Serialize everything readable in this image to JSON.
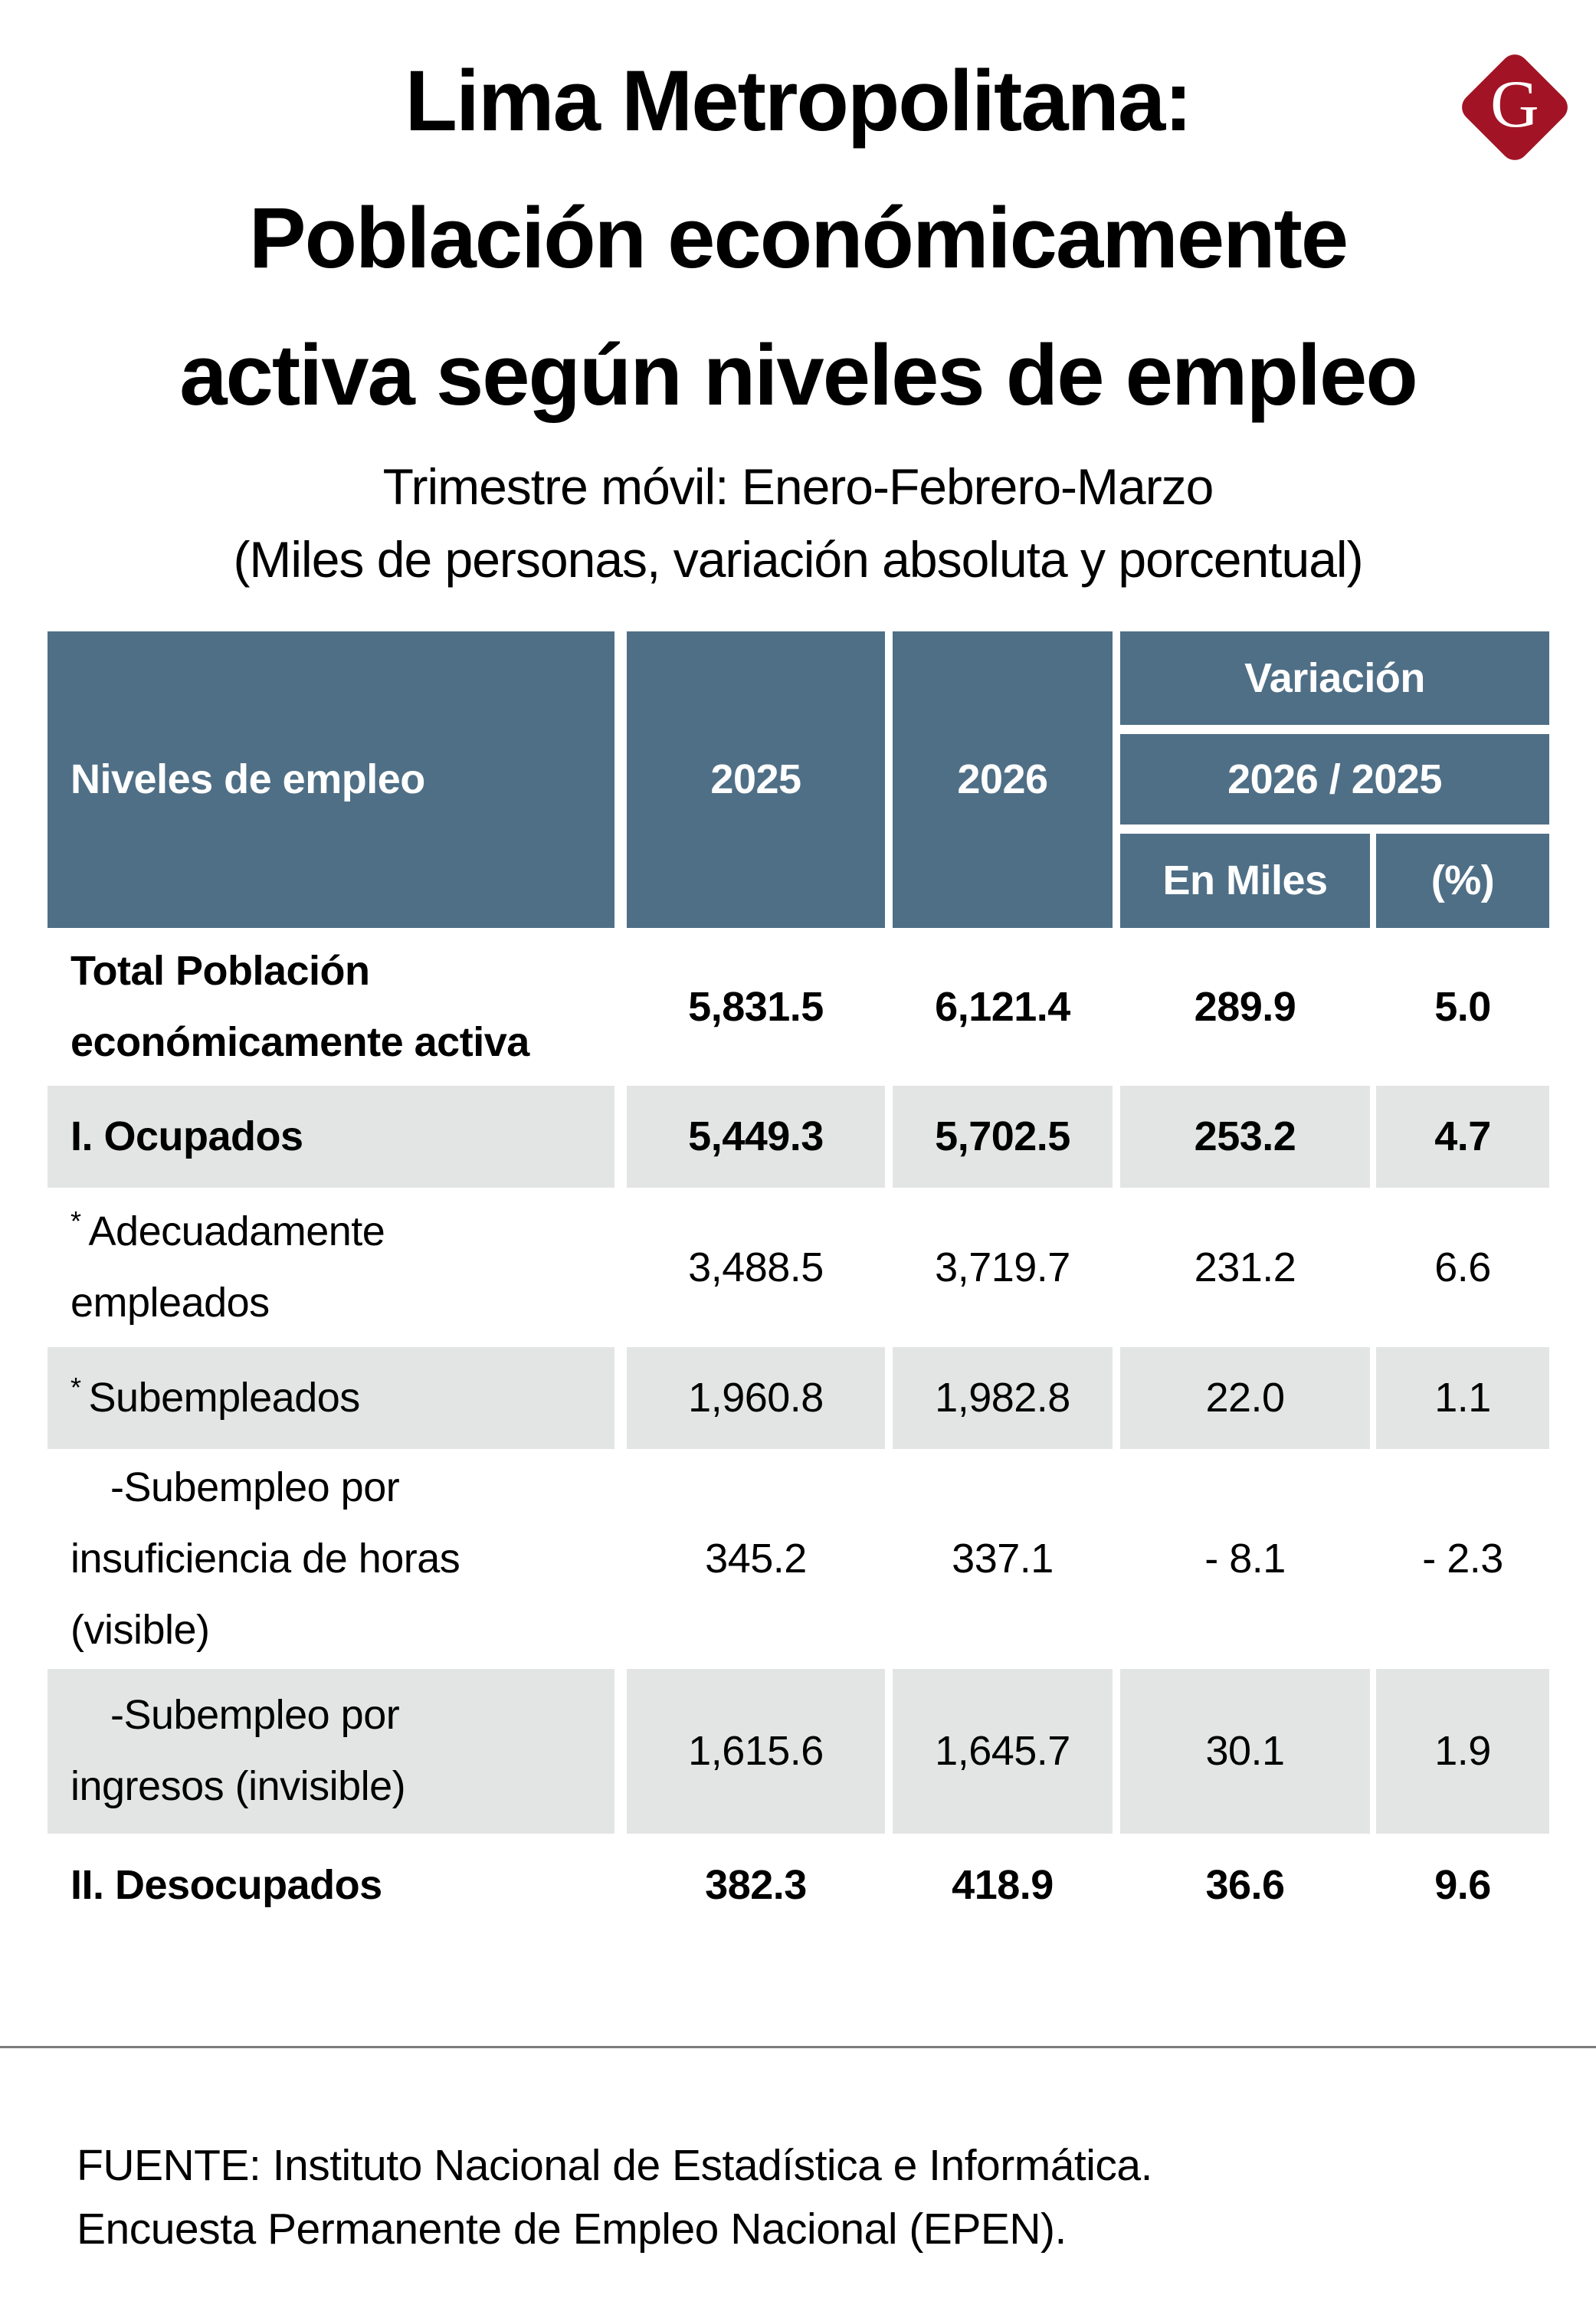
{
  "brand": {
    "logo_letter": "G"
  },
  "title": {
    "line1": "Lima Metropolitana:",
    "line2": "Población económicamente",
    "line3": "activa según niveles de empleo"
  },
  "subtitle": {
    "line1": "Trimestre móvil: Enero-Febrero-Marzo",
    "line2": "(Miles de personas, variación absoluta y porcentual)"
  },
  "table": {
    "header": {
      "col_levels": "Niveles de empleo",
      "col_2025": "2025",
      "col_2026": "2026",
      "variacion": "Variación",
      "ratio": "2026 / 2025",
      "en_miles": "En Miles",
      "pct": "(%)"
    },
    "rows": [
      {
        "prefix": "",
        "label": "Total Población\neconómicamente activa",
        "y2025": "5,831.5",
        "y2026": "6,121.4",
        "var_miles": "289.9",
        "var_pct": "5.0"
      },
      {
        "prefix": "",
        "label": "I. Ocupados",
        "y2025": "5,449.3",
        "y2026": "5,702.5",
        "var_miles": "253.2",
        "var_pct": "4.7"
      },
      {
        "prefix": "*",
        "label": "Adecuadamente\nempleados",
        "y2025": "3,488.5",
        "y2026": "3,719.7",
        "var_miles": "231.2",
        "var_pct": "6.6"
      },
      {
        "prefix": "*",
        "label": "Subempleados",
        "y2025": "1,960.8",
        "y2026": "1,982.8",
        "var_miles": "22.0",
        "var_pct": "1.1"
      },
      {
        "prefix": "",
        "label": "-Subempleo por\ninsuficiencia de horas\n(visible)",
        "y2025": "345.2",
        "y2026": "337.1",
        "var_miles": "- 8.1",
        "var_pct": "- 2.3"
      },
      {
        "prefix": "",
        "label": "-Subempleo por\ningresos (invisible)",
        "y2025": "1,615.6",
        "y2026": "1,645.7",
        "var_miles": "30.1",
        "var_pct": "1.9"
      },
      {
        "prefix": "",
        "label": "II. Desocupados",
        "y2025": "382.3",
        "y2026": "418.9",
        "var_miles": "36.6",
        "var_pct": "9.6"
      }
    ]
  },
  "footer": {
    "line1": "FUENTE: Instituto Nacional de Estadística e Informática.",
    "line2": "Encuesta Permanente de Empleo Nacional (EPEN)."
  },
  "colors": {
    "header_bg": "#4f6f86",
    "row_shaded_bg": "#e3e5e4",
    "logo_red": "#a21425",
    "divider": "#7c7c7c"
  },
  "chart_data": {
    "type": "table",
    "title": "Lima Metropolitana: Población económicamente activa según niveles de empleo",
    "subtitle": "Trimestre móvil: Enero-Febrero-Marzo (Miles de personas, variación absoluta y porcentual)",
    "columns": [
      "Niveles de empleo",
      "2025",
      "2026",
      "Variación 2026 / 2025 — En Miles",
      "Variación 2026 / 2025 — (%)"
    ],
    "rows": [
      [
        "Total Población económicamente activa",
        5831.5,
        6121.4,
        289.9,
        5.0
      ],
      [
        "I. Ocupados",
        5449.3,
        5702.5,
        253.2,
        4.7
      ],
      [
        "* Adecuadamente empleados",
        3488.5,
        3719.7,
        231.2,
        6.6
      ],
      [
        "* Subempleados",
        1960.8,
        1982.8,
        22.0,
        1.1
      ],
      [
        "-Subempleo por insuficiencia de horas (visible)",
        345.2,
        337.1,
        -8.1,
        -2.3
      ],
      [
        "-Subempleo por ingresos (invisible)",
        1615.6,
        1645.7,
        30.1,
        1.9
      ],
      [
        "II. Desocupados",
        382.3,
        418.9,
        36.6,
        9.6
      ]
    ],
    "source": "FUENTE: Instituto Nacional de Estadística e Informática. Encuesta Permanente de Empleo Nacional (EPEN)."
  }
}
